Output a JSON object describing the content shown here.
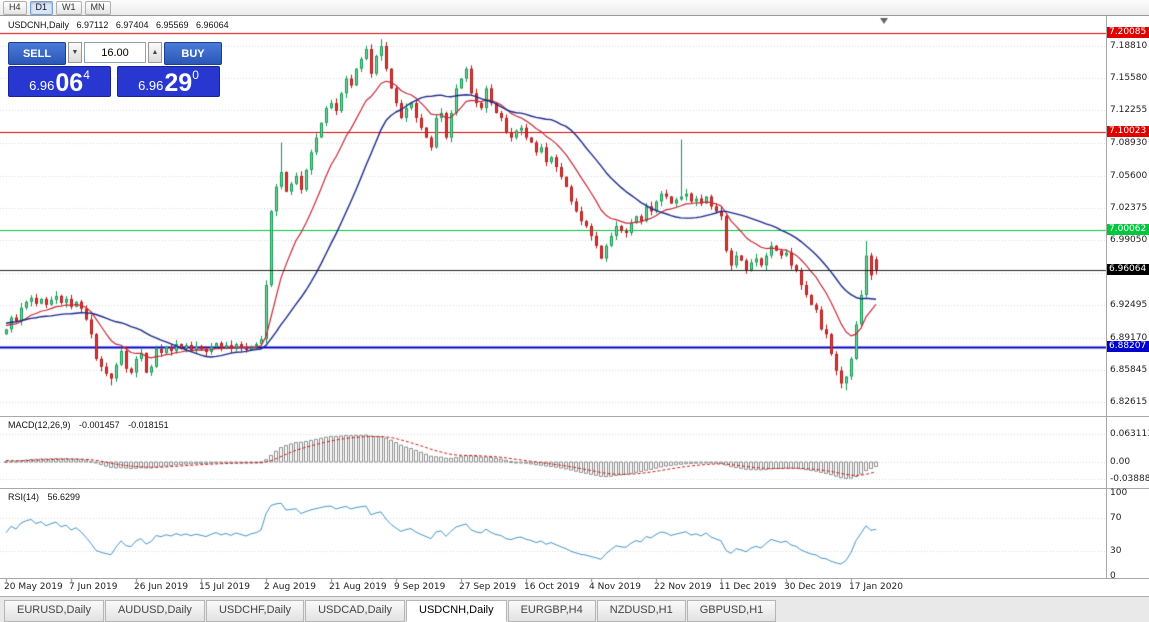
{
  "toolbar": {
    "timeframes": [
      {
        "label": "H4",
        "active": false
      },
      {
        "label": "D1",
        "active": true
      },
      {
        "label": "W1",
        "active": false
      },
      {
        "label": "MN",
        "active": false
      }
    ]
  },
  "symbol_info": {
    "name": "USDCNH,Daily",
    "open": "6.97112",
    "high": "6.97404",
    "low": "6.95569",
    "close": "6.96064"
  },
  "trade_panel": {
    "sell_label": "SELL",
    "buy_label": "BUY",
    "volume": "16.00",
    "decrease_label": "▼",
    "increase_label": "▲",
    "sell_price": {
      "prefix": "6.96",
      "big": "06",
      "sup": "4"
    },
    "buy_price": {
      "prefix": "6.96",
      "big": "29",
      "sup": "0"
    }
  },
  "chart_data": {
    "type": "candlestick",
    "symbol": "USDCNH",
    "timeframe": "Daily",
    "x_labels": [
      "20 May 2019",
      "7 Jun 2019",
      "26 Jun 2019",
      "15 Jul 2019",
      "2 Aug 2019",
      "21 Aug 2019",
      "9 Sep 2019",
      "27 Sep 2019",
      "16 Oct 2019",
      "4 Nov 2019",
      "22 Nov 2019",
      "11 Dec 2019",
      "30 Dec 2019",
      "17 Jan 2020"
    ],
    "bars_per_label": 13,
    "y_ticks": [
      "7.18810",
      "7.15580",
      "7.12255",
      "7.08930",
      "7.05600",
      "7.02375",
      "6.99050",
      "6.95725",
      "6.92495",
      "6.89170",
      "6.85845",
      "6.82615"
    ],
    "price_axis_range": [
      6.8129,
      7.2176
    ],
    "levels": [
      {
        "price": 7.20085,
        "label": "7.20085",
        "color": "#e00000"
      },
      {
        "price": 7.10023,
        "label": "7.10023",
        "color": "#e00000"
      },
      {
        "price": 7.00062,
        "label": "7.00062",
        "color": "#00c83e"
      },
      {
        "price": 6.88207,
        "label": "6.88207",
        "color": "#0000cc"
      }
    ],
    "current_price": {
      "value": 6.96064,
      "label": "6.96064",
      "bg": "#000000"
    },
    "open_first": 6.895,
    "pre_closes": [
      6.885,
      6.89,
      6.892,
      6.888,
      6.895,
      6.9,
      6.896,
      6.905,
      6.91,
      6.906,
      6.915,
      6.92,
      6.915,
      6.91,
      6.918,
      6.922,
      6.915,
      6.908,
      6.912,
      6.905,
      6.9,
      6.906,
      6.902,
      6.898,
      6.904,
      6.9
    ],
    "closes": [
      6.9,
      6.912,
      6.908,
      6.922,
      6.928,
      6.932,
      6.926,
      6.931,
      6.925,
      6.93,
      6.934,
      6.927,
      6.931,
      6.923,
      6.928,
      6.921,
      6.91,
      6.895,
      6.87,
      6.862,
      6.855,
      6.85,
      6.864,
      6.878,
      6.86,
      6.856,
      6.87,
      6.876,
      6.856,
      6.862,
      6.88,
      6.876,
      6.882,
      6.878,
      6.885,
      6.88,
      6.884,
      6.879,
      6.883,
      6.88,
      6.877,
      6.882,
      6.886,
      6.881,
      6.884,
      6.88,
      6.885,
      6.882,
      6.879,
      6.883,
      6.885,
      6.89,
      6.945,
      7.02,
      7.045,
      7.06,
      7.04,
      7.048,
      7.056,
      7.042,
      7.062,
      7.08,
      7.095,
      7.11,
      7.125,
      7.13,
      7.122,
      7.14,
      7.155,
      7.148,
      7.165,
      7.175,
      7.185,
      7.16,
      7.178,
      7.188,
      7.165,
      7.145,
      7.13,
      7.115,
      7.125,
      7.13,
      7.115,
      7.105,
      7.095,
      7.085,
      7.115,
      7.12,
      7.095,
      7.12,
      7.145,
      7.155,
      7.165,
      7.14,
      7.13,
      7.125,
      7.145,
      7.13,
      7.12,
      7.115,
      7.1,
      7.095,
      7.102,
      7.105,
      7.095,
      7.09,
      7.08,
      7.085,
      7.07,
      7.075,
      7.065,
      7.055,
      7.045,
      7.03,
      7.02,
      7.01,
      7.005,
      6.995,
      6.985,
      6.972,
      6.985,
      6.995,
      7.005,
      7.0,
      6.998,
      7.008,
      7.015,
      7.01,
      7.025,
      7.02,
      7.03,
      7.038,
      7.035,
      7.028,
      7.032,
      7.035,
      7.038,
      7.03,
      7.033,
      7.028,
      7.035,
      7.025,
      7.02,
      7.015,
      6.98,
      6.965,
      6.975,
      6.97,
      6.96,
      6.968,
      6.972,
      6.965,
      6.975,
      6.985,
      6.98,
      6.975,
      6.978,
      6.965,
      6.96,
      6.945,
      6.935,
      6.925,
      6.92,
      6.9,
      6.895,
      6.875,
      6.858,
      6.845,
      6.852,
      6.87,
      6.905,
      6.935,
      6.975,
      6.955,
      6.96064
    ],
    "overrides": {
      "21": {
        "l": 6.843
      },
      "55": {
        "h": 7.09
      },
      "75": {
        "h": 7.195
      },
      "135": {
        "h": 7.093
      },
      "167": {
        "l": 6.84
      },
      "168": {
        "l": 6.838
      },
      "172": {
        "h": 6.99
      },
      "174": {
        "o": 6.97112,
        "h": 6.97404,
        "l": 6.95569
      }
    },
    "moving_averages": [
      {
        "type": "EMA",
        "period": 12,
        "color": "#c62b39"
      },
      {
        "type": "SMA",
        "period": 24,
        "color": "#1b2a8a"
      }
    ],
    "colors": {
      "up_fill": "#7fd3a3",
      "up_border": "#129a52",
      "down_fill": "#e03c3c",
      "down_border": "#b51d1d",
      "grid": "#d8d8d8",
      "current_line": "#222222"
    },
    "macd": {
      "title": "MACD(12,26,9)",
      "value_main": "-0.001457",
      "value_signal": "-0.018151",
      "ticks": [
        {
          "v": 0.063113,
          "label": "0.063113"
        },
        {
          "v": 0,
          "label": "0.00"
        },
        {
          "v": -0.038887,
          "label": "-0.038887"
        }
      ],
      "bar_color": "#8c8c8c",
      "signal_color": "#cc2222"
    },
    "rsi": {
      "title": "RSI(14)",
      "value": "56.6299",
      "ticks": [
        {
          "v": 100,
          "label": "100"
        },
        {
          "v": 70,
          "label": "70"
        },
        {
          "v": 30,
          "label": "30"
        },
        {
          "v": 0,
          "label": "0"
        }
      ],
      "levels": [
        70,
        30
      ],
      "line_color": "#4596c8"
    }
  },
  "tabs": {
    "items": [
      {
        "label": "EURUSD,Daily",
        "active": false
      },
      {
        "label": "AUDUSD,Daily",
        "active": false
      },
      {
        "label": "USDCHF,Daily",
        "active": false
      },
      {
        "label": "USDCAD,Daily",
        "active": false
      },
      {
        "label": "USDCNH,Daily",
        "active": true
      },
      {
        "label": "EURGBP,H4",
        "active": false
      },
      {
        "label": "NZDUSD,H1",
        "active": false
      },
      {
        "label": "GBPUSD,H1",
        "active": false
      }
    ]
  }
}
